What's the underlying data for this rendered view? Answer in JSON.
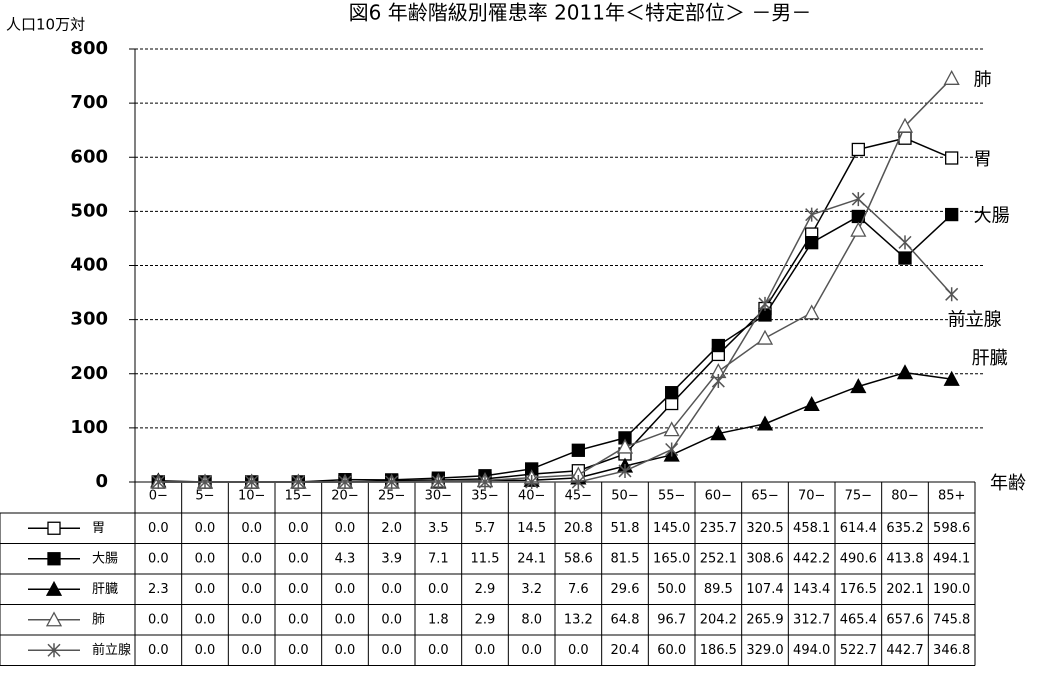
{
  "chart_data": {
    "type": "line",
    "title": "図6 年齢階級別罹患率 2011年＜特定部位＞ －男－",
    "y_label": "人口10万対",
    "x_label": "年齢",
    "categories": [
      "0−",
      "5−",
      "10−",
      "15−",
      "20−",
      "25−",
      "30−",
      "35−",
      "40−",
      "45−",
      "50−",
      "55−",
      "60−",
      "65−",
      "70−",
      "75−",
      "80−",
      "85+"
    ],
    "ylim": [
      0,
      800
    ],
    "yticks": [
      0,
      100,
      200,
      300,
      400,
      500,
      600,
      700,
      800
    ],
    "grid": true,
    "series": [
      {
        "name": "胃",
        "color": "#000000",
        "marker": "open-square",
        "values": [
          0,
          0,
          0,
          0,
          0,
          2,
          3.5,
          5.7,
          14.5,
          20.8,
          51.8,
          145,
          235.7,
          320.5,
          458.1,
          614.4,
          635.2,
          598.6
        ],
        "value_labels": [
          "0.0",
          "0.0",
          "0.0",
          "0.0",
          "0.0",
          "2.0",
          "3.5",
          "5.7",
          "14.5",
          "20.8",
          "51.8",
          "145.0",
          "235.7",
          "320.5",
          "458.1",
          "614.4",
          "635.2",
          "598.6"
        ]
      },
      {
        "name": "大腸",
        "color": "#000000",
        "marker": "filled-square",
        "values": [
          0,
          0,
          0,
          0,
          4.3,
          3.9,
          7.1,
          11.5,
          24.1,
          58.6,
          81.5,
          165,
          252.1,
          308.6,
          442.2,
          490.6,
          413.8,
          494.1
        ],
        "value_labels": [
          "0.0",
          "0.0",
          "0.0",
          "0.0",
          "4.3",
          "3.9",
          "7.1",
          "11.5",
          "24.1",
          "58.6",
          "81.5",
          "165.0",
          "252.1",
          "308.6",
          "442.2",
          "490.6",
          "413.8",
          "494.1"
        ]
      },
      {
        "name": "肝臓",
        "color": "#000000",
        "marker": "filled-triangle",
        "values": [
          2.3,
          0,
          0,
          0,
          0,
          0,
          0,
          2.9,
          3.2,
          7.6,
          29.6,
          50,
          89.5,
          107.4,
          143.4,
          176.5,
          202.1,
          190
        ],
        "value_labels": [
          "2.3",
          "0.0",
          "0.0",
          "0.0",
          "0.0",
          "0.0",
          "0.0",
          "2.9",
          "3.2",
          "7.6",
          "29.6",
          "50.0",
          "89.5",
          "107.4",
          "143.4",
          "176.5",
          "202.1",
          "190.0"
        ]
      },
      {
        "name": "肺",
        "color": "#555555",
        "marker": "open-triangle",
        "values": [
          0,
          0,
          0,
          0,
          0,
          0,
          1.8,
          2.9,
          8,
          13.2,
          64.8,
          96.7,
          204.2,
          265.9,
          312.7,
          465.4,
          657.6,
          745.8
        ],
        "value_labels": [
          "0.0",
          "0.0",
          "0.0",
          "0.0",
          "0.0",
          "0.0",
          "1.8",
          "2.9",
          "8.0",
          "13.2",
          "64.8",
          "96.7",
          "204.2",
          "265.9",
          "312.7",
          "465.4",
          "657.6",
          "745.8"
        ]
      },
      {
        "name": "前立腺",
        "color": "#555555",
        "marker": "asterisk",
        "values": [
          0,
          0,
          0,
          0,
          0,
          0,
          0,
          0,
          0,
          0,
          20.4,
          60,
          186.5,
          329,
          494,
          522.7,
          442.7,
          346.8
        ],
        "value_labels": [
          "0.0",
          "0.0",
          "0.0",
          "0.0",
          "0.0",
          "0.0",
          "0.0",
          "0.0",
          "0.0",
          "0.0",
          "20.4",
          "60.0",
          "186.5",
          "329.0",
          "494.0",
          "522.7",
          "442.7",
          "346.8"
        ]
      }
    ]
  }
}
